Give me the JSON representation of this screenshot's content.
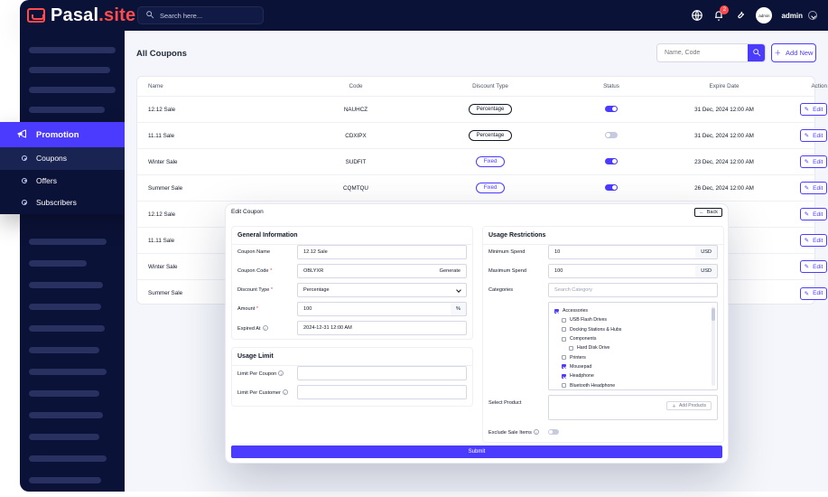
{
  "brand": {
    "name": "Pasal",
    "tld": ".site"
  },
  "topbar": {
    "search_placeholder": "Search here...",
    "notifications_count": "2",
    "avatar_text": "admin",
    "user_label": "admin"
  },
  "sidebar": {
    "promotion": {
      "label": "Promotion",
      "items": [
        {
          "label": "Coupons"
        },
        {
          "label": "Offers"
        },
        {
          "label": "Subscribers"
        }
      ]
    }
  },
  "page": {
    "title": "All Coupons",
    "filter_placeholder": "Name, Code",
    "add_new_label": "Add New"
  },
  "table": {
    "columns": [
      "Name",
      "Code",
      "Discount Type",
      "Status",
      "Expire Date",
      "Action"
    ],
    "rows": [
      {
        "name": "12.12 Sale",
        "code": "NAUHCZ",
        "discount_type": "Percentage",
        "status_on": true,
        "expire": "31 Dec, 2024 12:00 AM",
        "action": "Edit"
      },
      {
        "name": "11.11 Sale",
        "code": "CDXIPX",
        "discount_type": "Percentage",
        "status_on": false,
        "expire": "31 Dec, 2024 12:00 AM",
        "action": "Edit"
      },
      {
        "name": "Winter Sale",
        "code": "SUDFIT",
        "discount_type": "Fixed",
        "status_on": true,
        "expire": "23 Dec, 2024 12:00 AM",
        "action": "Edit"
      },
      {
        "name": "Summer Sale",
        "code": "CQMTQU",
        "discount_type": "Fixed",
        "status_on": true,
        "expire": "26 Dec, 2024 12:00 AM",
        "action": "Edit"
      },
      {
        "name": "12.12 Sale",
        "code": "",
        "discount_type": "",
        "status_on": true,
        "expire": "",
        "action": "Edit"
      },
      {
        "name": "11.11 Sale",
        "code": "",
        "discount_type": "",
        "status_on": false,
        "expire": "",
        "action": "Edit"
      },
      {
        "name": "Winter Sale",
        "code": "",
        "discount_type": "",
        "status_on": true,
        "expire": "",
        "action": "Edit"
      },
      {
        "name": "Summer Sale",
        "code": "",
        "discount_type": "",
        "status_on": true,
        "expire": "",
        "action": "Edit"
      }
    ]
  },
  "modal": {
    "title": "Edit Coupon",
    "back_label": "Back",
    "general": {
      "title": "General Information",
      "coupon_name_label": "Coupon Name",
      "coupon_name_value": "12.12 Sale",
      "coupon_code_label": "Coupon Code",
      "coupon_code_value": "OBLYXR",
      "generate_label": "Generate",
      "discount_type_label": "Discount Type",
      "discount_type_value": "Percentage",
      "amount_label": "Amount",
      "amount_value": "100",
      "amount_suffix": "%",
      "expired_at_label": "Expired At",
      "expired_at_value": "2024-12-31 12:00 AM"
    },
    "usage_limit": {
      "title": "Usage Limit",
      "per_coupon_label": "Limit Per Coupon",
      "per_customer_label": "Limit Per Customer"
    },
    "usage_restrictions": {
      "title": "Usage Restrictions",
      "min_spend_label": "Minimum Spend",
      "min_spend_value": "10",
      "max_spend_label": "Maximum Spend",
      "max_spend_value": "100",
      "currency": "USD",
      "categories_label": "Categories",
      "category_search_placeholder": "Search Category",
      "category_tree": [
        {
          "label": "Accessories",
          "checked": true,
          "level": 0
        },
        {
          "label": "USB Flash Drives",
          "checked": false,
          "level": 1
        },
        {
          "label": "Docking Stations & Hubs",
          "checked": false,
          "level": 1
        },
        {
          "label": "Components",
          "checked": false,
          "level": 1
        },
        {
          "label": "Hard Disk Drive",
          "checked": false,
          "level": 2
        },
        {
          "label": "Printers",
          "checked": false,
          "level": 1
        },
        {
          "label": "Mousepad",
          "checked": true,
          "level": 1
        },
        {
          "label": "Headphone",
          "checked": true,
          "level": 1
        },
        {
          "label": "Bluetooth Headphone",
          "checked": false,
          "level": 1
        }
      ],
      "select_product_label": "Select Product",
      "add_products_label": "Add Products",
      "exclude_sale_items_label": "Exclude Sale Items"
    },
    "submit_label": "Submit"
  }
}
